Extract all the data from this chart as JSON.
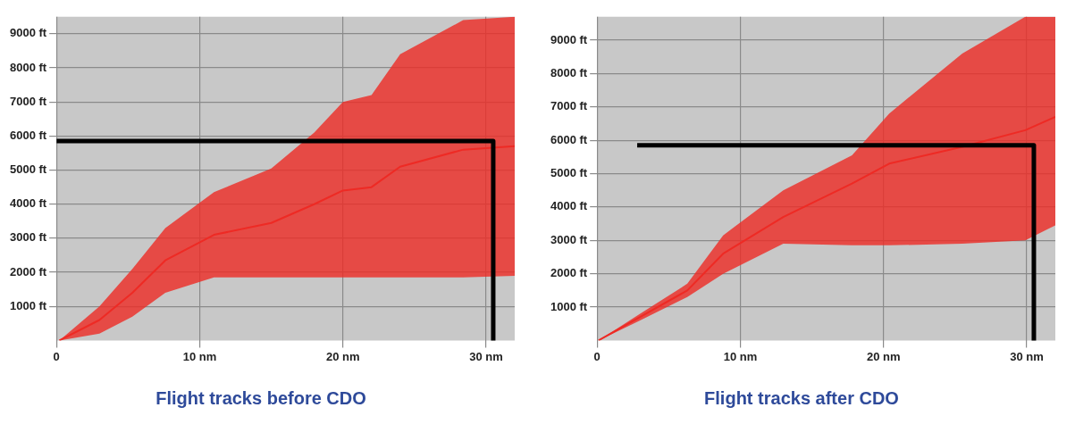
{
  "chart_data": [
    {
      "type": "line",
      "title": "Flight tracks before CDO",
      "xlim": [
        0,
        32
      ],
      "ylim": [
        0,
        9500
      ],
      "grid": true,
      "legend": false,
      "xticks": [
        {
          "value": 0,
          "label": "0"
        },
        {
          "value": 10,
          "label": "10 nm"
        },
        {
          "value": 20,
          "label": "20 nm"
        },
        {
          "value": 30,
          "label": "30 nm"
        }
      ],
      "yticks": [
        {
          "value": 1000,
          "label": "1000 ft"
        },
        {
          "value": 2000,
          "label": "2000 ft"
        },
        {
          "value": 3000,
          "label": "3000 ft"
        },
        {
          "value": 4000,
          "label": "4000 ft"
        },
        {
          "value": 5000,
          "label": "5000 ft"
        },
        {
          "value": 6000,
          "label": "6000 ft"
        },
        {
          "value": 7000,
          "label": "7000 ft"
        },
        {
          "value": 8000,
          "label": "8000 ft"
        },
        {
          "value": 9000,
          "label": "9000 ft"
        }
      ],
      "series": [
        {
          "color": "#ee2a24",
          "x": [
            0.2,
            3,
            5.3,
            7.6,
            11,
            15,
            18,
            20,
            22,
            24,
            28.4,
            32
          ],
          "values": [
            0,
            600,
            1400,
            2350,
            3100,
            3450,
            4000,
            4400,
            4500,
            5100,
            5600,
            5700
          ],
          "lower": [
            0,
            200,
            700,
            1400,
            1850,
            1850,
            1850,
            1850,
            1850,
            1850,
            1850,
            1900
          ],
          "upper": [
            0,
            1000,
            2100,
            3300,
            4350,
            5050,
            6100,
            7000,
            7200,
            8400,
            9400,
            9500
          ]
        },
        {
          "color": "#000000",
          "x": [
            0,
            30.5,
            30.5
          ],
          "values": [
            5850,
            5850,
            0
          ]
        }
      ]
    },
    {
      "type": "line",
      "title": "Flight tracks after CDO",
      "xlim": [
        0,
        32
      ],
      "ylim": [
        0,
        9700
      ],
      "grid": true,
      "legend": false,
      "xticks": [
        {
          "value": 0,
          "label": "0"
        },
        {
          "value": 10,
          "label": "10 nm"
        },
        {
          "value": 20,
          "label": "20 nm"
        },
        {
          "value": 30,
          "label": "30 nm"
        }
      ],
      "yticks": [
        {
          "value": 1000,
          "label": "1000 ft"
        },
        {
          "value": 2000,
          "label": "2000 ft"
        },
        {
          "value": 3000,
          "label": "3000 ft"
        },
        {
          "value": 4000,
          "label": "4000 ft"
        },
        {
          "value": 5000,
          "label": "5000 ft"
        },
        {
          "value": 6000,
          "label": "6000 ft"
        },
        {
          "value": 7000,
          "label": "7000 ft"
        },
        {
          "value": 8000,
          "label": "8000 ft"
        },
        {
          "value": 9000,
          "label": "9000 ft"
        }
      ],
      "series": [
        {
          "color": "#ee2a24",
          "x": [
            0.1,
            3,
            6.3,
            8.8,
            13,
            17.8,
            20.4,
            25.5,
            29.9,
            32
          ],
          "values": [
            0,
            700,
            1500,
            2600,
            3700,
            4700,
            5300,
            5800,
            6300,
            6700
          ],
          "lower": [
            0,
            600,
            1300,
            2000,
            2900,
            2850,
            2850,
            2900,
            3000,
            3450
          ],
          "upper": [
            0,
            800,
            1700,
            3150,
            4500,
            5550,
            6800,
            8600,
            9700,
            9700
          ]
        },
        {
          "color": "#000000",
          "x": [
            2.8,
            30.5,
            30.5
          ],
          "values": [
            5850,
            5850,
            0
          ]
        }
      ]
    }
  ]
}
